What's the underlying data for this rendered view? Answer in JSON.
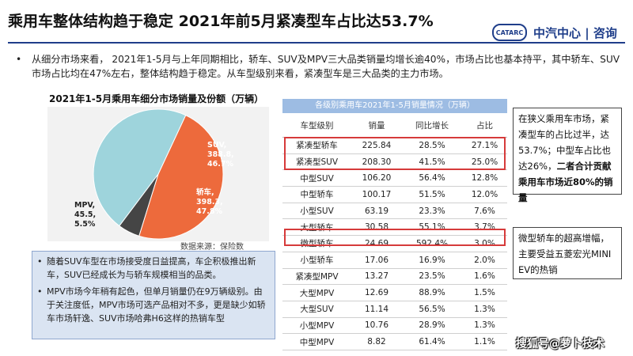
{
  "header": {
    "title": "乘用车整体结构趋于稳定 2021年前5月紧凑型车占比达53.7%",
    "logo_mark": "CATARC",
    "logo_text": "中汽中心 | 咨询"
  },
  "summary": {
    "bullet": "•",
    "text": "从细分市场来看， 2021年1-5月与上年同期相比，轿车、SUV及MPV三大品类销量均增长逾40%，市场占比也基本持平，其中轿车、SUV市场占比均在47%左右，整体结构趋于稳定。从车型级别来看，紧凑型车是三大品类的主力市场。"
  },
  "pie": {
    "title": "2021年1-5月乘用车细分市场销量及份额（万辆）",
    "source": "数据来源：保险数",
    "labels": [
      {
        "line1": "SUV,",
        "line2": "388.8,",
        "line3": "46.7%"
      },
      {
        "line1": "轿车,",
        "line2": "398.3,",
        "line3": "47.8%"
      },
      {
        "line1": "MPV,",
        "line2": "45.5,",
        "line3": "5.5%"
      }
    ]
  },
  "left_notes": [
    {
      "bullet": "•",
      "text": "随着SUV车型在市场接受度日益提高，车企积极推出新车，SUV已经成长为与轿车规模相当的品类。"
    },
    {
      "bullet": "•",
      "text": "MPV市场今年稍有起色，但单月销量仍在9万辆级别。由于关注度低，MPV市场可选产品相对不多，更是缺少如轿车市场轩逸、SUV市场哈弗H6这样的热销车型"
    }
  ],
  "table": {
    "title": "各级别乘用车2021年1-5月销量情况（万辆）",
    "headers": [
      "车型级别",
      "销量",
      "同比增长",
      "占比"
    ],
    "rows": [
      [
        "紧凑型轿车",
        "225.84",
        "28.5%",
        "27.1%"
      ],
      [
        "紧凑型SUV",
        "208.30",
        "41.5%",
        "25.0%"
      ],
      [
        "中型SUV",
        "106.20",
        "56.4%",
        "12.8%"
      ],
      [
        "中型轿车",
        "100.17",
        "51.5%",
        "12.0%"
      ],
      [
        "小型SUV",
        "63.19",
        "23.3%",
        "7.6%"
      ],
      [
        "大型轿车",
        "30.58",
        "55.1%",
        "3.7%"
      ],
      [
        "微型轿车",
        "24.69",
        "592.4%",
        "3.0%"
      ],
      [
        "小型轿车",
        "17.06",
        "16.9%",
        "2.0%"
      ],
      [
        "紧凑型MPV",
        "13.27",
        "23.5%",
        "1.6%"
      ],
      [
        "大型MPV",
        "12.69",
        "88.9%",
        "1.5%"
      ],
      [
        "大型SUV",
        "11.14",
        "56.5%",
        "1.3%"
      ],
      [
        "小型MPV",
        "10.76",
        "28.9%",
        "1.3%"
      ],
      [
        "中型MPV",
        "8.82",
        "61.4%",
        "1.1%"
      ]
    ]
  },
  "callouts": {
    "compact": {
      "text_a": "在狭义乘用车市场，紧凑型车的占比过半，达53.7%；中型车占比也达26%，",
      "text_b": "二者合计贡献乘用车市场近80%的销量"
    },
    "mini": {
      "text": "微型轿车的超高增幅，主要受益五菱宏光MINI EV的热销"
    }
  },
  "watermark": "搜狐号@萝卜技术",
  "chart_data": [
    {
      "type": "pie",
      "title": "2021年1-5月乘用车细分市场销量及份额（万辆）",
      "categories": [
        "SUV",
        "轿车",
        "MPV"
      ],
      "values": [
        388.8,
        398.3,
        45.5
      ],
      "shares": [
        46.7,
        47.8,
        5.5
      ],
      "colors": [
        "#9ed4dc",
        "#ed6a3c",
        "#454545"
      ]
    },
    {
      "type": "table",
      "title": "各级别乘用车2021年1-5月销量情况（万辆）",
      "columns": [
        "车型级别",
        "销量",
        "同比增长",
        "占比"
      ],
      "categories": [
        "紧凑型轿车",
        "紧凑型SUV",
        "中型SUV",
        "中型轿车",
        "小型SUV",
        "大型轿车",
        "微型轿车",
        "小型轿车",
        "紧凑型MPV",
        "大型MPV",
        "大型SUV",
        "小型MPV",
        "中型MPV"
      ],
      "sales": [
        225.84,
        208.3,
        106.2,
        100.17,
        63.19,
        30.58,
        24.69,
        17.06,
        13.27,
        12.69,
        11.14,
        10.76,
        8.82
      ],
      "yoy_growth_pct": [
        28.5,
        41.5,
        56.4,
        51.5,
        23.3,
        55.1,
        592.4,
        16.9,
        23.5,
        88.9,
        56.5,
        28.9,
        61.4
      ],
      "share_pct": [
        27.1,
        25.0,
        12.8,
        12.0,
        7.6,
        3.7,
        3.0,
        2.0,
        1.6,
        1.5,
        1.3,
        1.3,
        1.1
      ]
    }
  ],
  "colors": {
    "accent": "#1f3e8a",
    "highlight": "#d63a3a",
    "note_bg": "#dae4f2",
    "table_header": "#9dbce3"
  }
}
